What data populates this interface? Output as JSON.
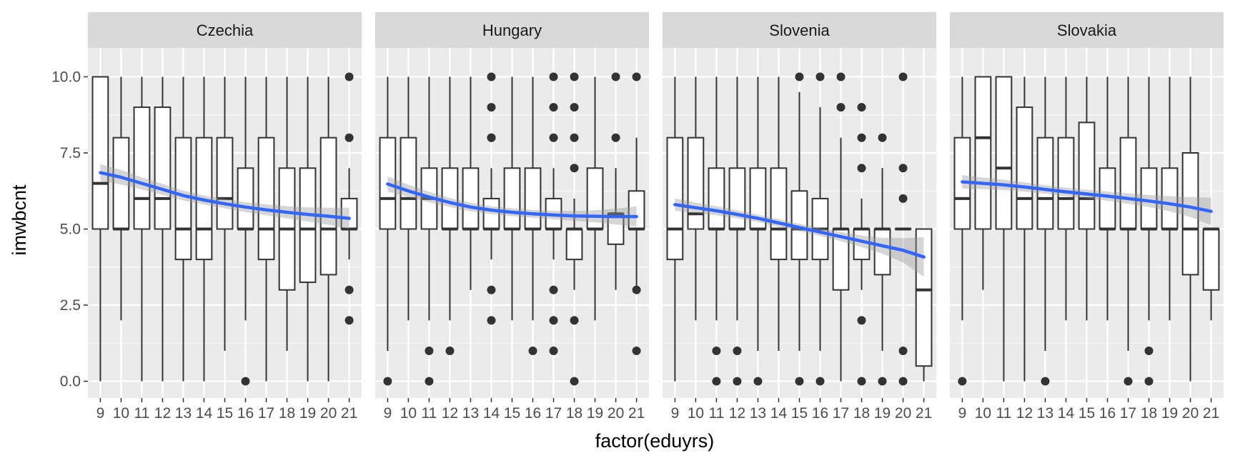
{
  "chart_data": {
    "type": "boxplot",
    "facet_variable": "cntry",
    "xlabel": "factor(eduyrs)",
    "ylabel": "imwbcnt",
    "categories": [
      "9",
      "10",
      "11",
      "12",
      "13",
      "14",
      "15",
      "16",
      "17",
      "18",
      "19",
      "20",
      "21"
    ],
    "y_ticks": [
      "0.0",
      "2.5",
      "5.0",
      "7.5",
      "10.0"
    ],
    "ylim": [
      -0.55,
      10.95
    ],
    "grid": true,
    "smooth_color": "#3366FF",
    "panels": [
      {
        "name": "Czechia",
        "boxes": [
          {
            "x": "9",
            "low": 0,
            "q1": 5,
            "median": 6.5,
            "q3": 10,
            "high": 10,
            "outliers": []
          },
          {
            "x": "10",
            "low": 2,
            "q1": 5,
            "median": 5,
            "q3": 8,
            "high": 10,
            "outliers": []
          },
          {
            "x": "11",
            "low": 0,
            "q1": 5,
            "median": 6,
            "q3": 9,
            "high": 10,
            "outliers": []
          },
          {
            "x": "12",
            "low": 0,
            "q1": 5,
            "median": 6,
            "q3": 9,
            "high": 10,
            "outliers": []
          },
          {
            "x": "13",
            "low": 0,
            "q1": 4,
            "median": 5,
            "q3": 8,
            "high": 10,
            "outliers": []
          },
          {
            "x": "14",
            "low": 0,
            "q1": 4,
            "median": 5,
            "q3": 8,
            "high": 10,
            "outliers": []
          },
          {
            "x": "15",
            "low": 1,
            "q1": 5,
            "median": 6,
            "q3": 8,
            "high": 10,
            "outliers": []
          },
          {
            "x": "16",
            "low": 2,
            "q1": 5,
            "median": 5,
            "q3": 7,
            "high": 10,
            "outliers": [
              0
            ]
          },
          {
            "x": "17",
            "low": 0,
            "q1": 4,
            "median": 5,
            "q3": 8,
            "high": 10,
            "outliers": []
          },
          {
            "x": "18",
            "low": 1,
            "q1": 3,
            "median": 5,
            "q3": 7,
            "high": 10,
            "outliers": []
          },
          {
            "x": "19",
            "low": 0,
            "q1": 3.25,
            "median": 5,
            "q3": 7,
            "high": 10,
            "outliers": []
          },
          {
            "x": "20",
            "low": 0,
            "q1": 3.5,
            "median": 5,
            "q3": 8,
            "high": 10,
            "outliers": []
          },
          {
            "x": "21",
            "low": 4,
            "q1": 5,
            "median": 5,
            "q3": 6,
            "high": 7,
            "outliers": [
              10,
              8,
              3,
              2
            ]
          }
        ],
        "smooth": [
          [
            1,
            6.85
          ],
          [
            2,
            6.7
          ],
          [
            3,
            6.5
          ],
          [
            4,
            6.3
          ],
          [
            5,
            6.1
          ],
          [
            6,
            5.95
          ],
          [
            7,
            5.83
          ],
          [
            8,
            5.72
          ],
          [
            9,
            5.63
          ],
          [
            10,
            5.55
          ],
          [
            11,
            5.48
          ],
          [
            12,
            5.42
          ],
          [
            13,
            5.35
          ]
        ],
        "band": [
          0.28,
          0.24,
          0.2,
          0.18,
          0.16,
          0.15,
          0.15,
          0.16,
          0.18,
          0.2,
          0.23,
          0.28,
          0.35
        ]
      },
      {
        "name": "Hungary",
        "boxes": [
          {
            "x": "9",
            "low": 1,
            "q1": 5,
            "median": 6,
            "q3": 8,
            "high": 10,
            "outliers": [
              0
            ]
          },
          {
            "x": "10",
            "low": 2,
            "q1": 5,
            "median": 6,
            "q3": 8,
            "high": 10,
            "outliers": []
          },
          {
            "x": "11",
            "low": 2,
            "q1": 5,
            "median": 6,
            "q3": 7,
            "high": 10,
            "outliers": [
              1,
              0
            ]
          },
          {
            "x": "12",
            "low": 2,
            "q1": 5,
            "median": 5,
            "q3": 7,
            "high": 10,
            "outliers": [
              1
            ]
          },
          {
            "x": "13",
            "low": 3,
            "q1": 5,
            "median": 5,
            "q3": 7,
            "high": 10,
            "outliers": []
          },
          {
            "x": "14",
            "low": 4,
            "q1": 5,
            "median": 5,
            "q3": 6,
            "high": 7,
            "outliers": [
              10,
              9,
              8,
              8,
              3,
              2
            ]
          },
          {
            "x": "15",
            "low": 2,
            "q1": 5,
            "median": 5,
            "q3": 7,
            "high": 10,
            "outliers": []
          },
          {
            "x": "16",
            "low": 2,
            "q1": 5,
            "median": 5,
            "q3": 7,
            "high": 10,
            "outliers": [
              1
            ]
          },
          {
            "x": "17",
            "low": 4,
            "q1": 5,
            "median": 5,
            "q3": 6,
            "high": 7,
            "outliers": [
              10,
              9,
              8,
              3,
              2,
              1
            ]
          },
          {
            "x": "18",
            "low": 3,
            "q1": 4,
            "median": 5,
            "q3": 5,
            "high": 6,
            "outliers": [
              10,
              9,
              8,
              7,
              2,
              0
            ]
          },
          {
            "x": "19",
            "low": 2,
            "q1": 5,
            "median": 5,
            "q3": 7,
            "high": 10,
            "outliers": []
          },
          {
            "x": "20",
            "low": 3,
            "q1": 4.5,
            "median": 5.5,
            "q3": 5.5,
            "high": 7,
            "outliers": [
              10,
              8
            ]
          },
          {
            "x": "21",
            "low": 3,
            "q1": 5,
            "median": 5,
            "q3": 6.25,
            "high": 8,
            "outliers": [
              10,
              3,
              1
            ]
          }
        ],
        "smooth": [
          [
            1,
            6.48
          ],
          [
            2,
            6.25
          ],
          [
            3,
            6.05
          ],
          [
            4,
            5.87
          ],
          [
            5,
            5.72
          ],
          [
            6,
            5.62
          ],
          [
            7,
            5.55
          ],
          [
            8,
            5.5
          ],
          [
            9,
            5.46
          ],
          [
            10,
            5.43
          ],
          [
            11,
            5.42
          ],
          [
            12,
            5.41
          ],
          [
            13,
            5.41
          ]
        ],
        "band": [
          0.25,
          0.2,
          0.17,
          0.15,
          0.14,
          0.13,
          0.13,
          0.13,
          0.14,
          0.16,
          0.2,
          0.26,
          0.33
        ]
      },
      {
        "name": "Slovenia",
        "boxes": [
          {
            "x": "9",
            "low": 0,
            "q1": 4,
            "median": 5,
            "q3": 8,
            "high": 10,
            "outliers": []
          },
          {
            "x": "10",
            "low": 2,
            "q1": 5,
            "median": 5.5,
            "q3": 8,
            "high": 10,
            "outliers": []
          },
          {
            "x": "11",
            "low": 2,
            "q1": 5,
            "median": 5,
            "q3": 7,
            "high": 10,
            "outliers": [
              1,
              0
            ]
          },
          {
            "x": "12",
            "low": 2,
            "q1": 5,
            "median": 5,
            "q3": 7,
            "high": 10,
            "outliers": [
              1,
              0
            ]
          },
          {
            "x": "13",
            "low": 1,
            "q1": 5,
            "median": 5,
            "q3": 7,
            "high": 10,
            "outliers": [
              0
            ]
          },
          {
            "x": "14",
            "low": 1,
            "q1": 4,
            "median": 5,
            "q3": 7,
            "high": 10,
            "outliers": []
          },
          {
            "x": "15",
            "low": 1,
            "q1": 4,
            "median": 5,
            "q3": 6.25,
            "high": 9.5,
            "outliers": [
              10,
              0
            ]
          },
          {
            "x": "16",
            "low": 1,
            "q1": 4,
            "median": 5,
            "q3": 6,
            "high": 9,
            "outliers": [
              10,
              0
            ]
          },
          {
            "x": "17",
            "low": 0,
            "q1": 3,
            "median": 5,
            "q3": 5,
            "high": 8,
            "outliers": [
              10,
              9
            ]
          },
          {
            "x": "18",
            "low": 3,
            "q1": 4,
            "median": 5,
            "q3": 5,
            "high": 6,
            "outliers": [
              9,
              8,
              7,
              2,
              0
            ]
          },
          {
            "x": "19",
            "low": 1,
            "q1": 3.5,
            "median": 5,
            "q3": 5,
            "high": 7,
            "outliers": [
              8,
              0
            ]
          },
          {
            "x": "20",
            "low": 5,
            "q1": 5,
            "median": 5,
            "q3": 5,
            "high": 5,
            "outliers": [
              10,
              7,
              6,
              1,
              0
            ]
          },
          {
            "x": "21",
            "low": 0,
            "q1": 0.5,
            "median": 3,
            "q3": 5,
            "high": 5,
            "outliers": []
          }
        ],
        "smooth": [
          [
            1,
            5.8
          ],
          [
            2,
            5.7
          ],
          [
            3,
            5.6
          ],
          [
            4,
            5.48
          ],
          [
            5,
            5.35
          ],
          [
            6,
            5.2
          ],
          [
            7,
            5.05
          ],
          [
            8,
            4.9
          ],
          [
            9,
            4.75
          ],
          [
            10,
            4.6
          ],
          [
            11,
            4.45
          ],
          [
            12,
            4.3
          ],
          [
            13,
            4.08
          ]
        ],
        "band": [
          0.2,
          0.17,
          0.15,
          0.13,
          0.12,
          0.12,
          0.12,
          0.13,
          0.15,
          0.19,
          0.26,
          0.4,
          0.65
        ]
      },
      {
        "name": "Slovakia",
        "boxes": [
          {
            "x": "9",
            "low": 2,
            "q1": 5,
            "median": 6,
            "q3": 8,
            "high": 10,
            "outliers": [
              0
            ]
          },
          {
            "x": "10",
            "low": 3,
            "q1": 5,
            "median": 8,
            "q3": 10,
            "high": 10,
            "outliers": []
          },
          {
            "x": "11",
            "low": 0,
            "q1": 5,
            "median": 7,
            "q3": 10,
            "high": 10,
            "outliers": []
          },
          {
            "x": "12",
            "low": 0,
            "q1": 5,
            "median": 6,
            "q3": 9,
            "high": 10,
            "outliers": []
          },
          {
            "x": "13",
            "low": 1,
            "q1": 5,
            "median": 6,
            "q3": 8,
            "high": 10,
            "outliers": [
              0
            ]
          },
          {
            "x": "14",
            "low": 2,
            "q1": 5,
            "median": 6,
            "q3": 8,
            "high": 10,
            "outliers": []
          },
          {
            "x": "15",
            "low": 2,
            "q1": 5,
            "median": 6,
            "q3": 8.5,
            "high": 10,
            "outliers": []
          },
          {
            "x": "16",
            "low": 2,
            "q1": 5,
            "median": 5,
            "q3": 7,
            "high": 10,
            "outliers": []
          },
          {
            "x": "17",
            "low": 1,
            "q1": 5,
            "median": 5,
            "q3": 8,
            "high": 10,
            "outliers": [
              0
            ]
          },
          {
            "x": "18",
            "low": 2,
            "q1": 5,
            "median": 5,
            "q3": 7,
            "high": 10,
            "outliers": [
              1,
              0
            ]
          },
          {
            "x": "19",
            "low": 2,
            "q1": 5,
            "median": 5,
            "q3": 7,
            "high": 10,
            "outliers": []
          },
          {
            "x": "20",
            "low": 0,
            "q1": 3.5,
            "median": 5,
            "q3": 7.5,
            "high": 10,
            "outliers": []
          },
          {
            "x": "21",
            "low": 2,
            "q1": 3,
            "median": 5,
            "q3": 5,
            "high": 5,
            "outliers": []
          }
        ],
        "smooth": [
          [
            1,
            6.55
          ],
          [
            2,
            6.5
          ],
          [
            3,
            6.45
          ],
          [
            4,
            6.38
          ],
          [
            5,
            6.3
          ],
          [
            6,
            6.22
          ],
          [
            7,
            6.15
          ],
          [
            8,
            6.08
          ],
          [
            9,
            6.0
          ],
          [
            10,
            5.92
          ],
          [
            11,
            5.83
          ],
          [
            12,
            5.72
          ],
          [
            13,
            5.58
          ]
        ],
        "band": [
          0.22,
          0.19,
          0.17,
          0.15,
          0.14,
          0.14,
          0.14,
          0.15,
          0.17,
          0.2,
          0.25,
          0.33,
          0.45
        ]
      }
    ]
  }
}
